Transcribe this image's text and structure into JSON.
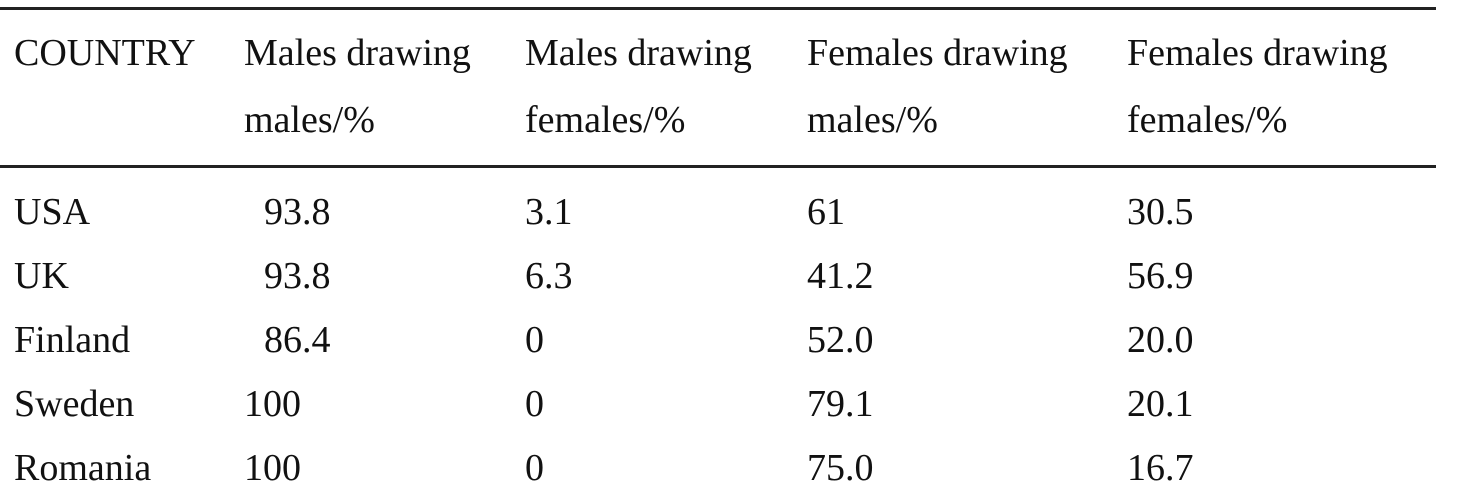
{
  "table": {
    "header": {
      "country": "COUNTRY",
      "col1_line1": "Males drawing",
      "col1_line2": "males/%",
      "col2_line1": "Males drawing",
      "col2_line2": "females/%",
      "col3_line1": "Females drawing",
      "col3_line2": "males/%",
      "col4_line1": "Females drawing",
      "col4_line2": "females/%"
    },
    "rows": [
      {
        "country": "USA",
        "mm": "93.8",
        "mf": "3.1",
        "fm": "61",
        "ff": "30.5"
      },
      {
        "country": "UK",
        "mm": "93.8",
        "mf": "6.3",
        "fm": "41.2",
        "ff": "56.9"
      },
      {
        "country": "Finland",
        "mm": "86.4",
        "mf": "0",
        "fm": "52.0",
        "ff": "20.0"
      },
      {
        "country": "Sweden",
        "mm": "100",
        "mf": "0",
        "fm": "79.1",
        "ff": "20.1"
      },
      {
        "country": "Romania",
        "mm": "100",
        "mf": "0",
        "fm": "75.0",
        "ff": "16.7"
      }
    ]
  }
}
